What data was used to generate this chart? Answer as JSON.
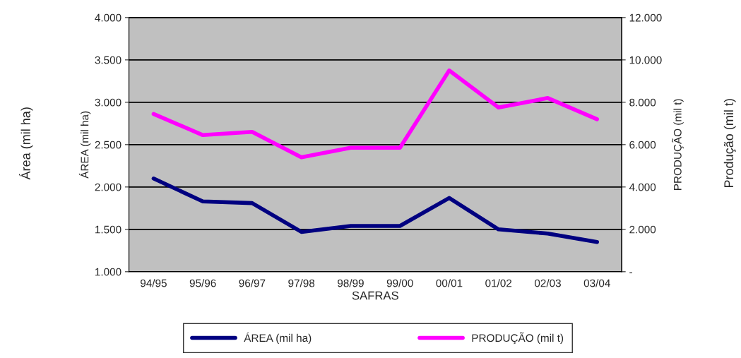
{
  "chart_data": {
    "type": "line",
    "xlabel": "SAFRAS",
    "ylabel": "ÁREA (mil ha)",
    "y2label": "PRODUÇÃO (mil t)",
    "categories": [
      "94/95",
      "95/96",
      "96/97",
      "97/98",
      "98/99",
      "99/00",
      "00/01",
      "01/02",
      "02/03",
      "03/04"
    ],
    "series": [
      {
        "name": "ÁREA (mil ha)",
        "color": "#000080",
        "values": [
          2100,
          1830,
          1810,
          1470,
          1540,
          1540,
          1870,
          1500,
          1450,
          1350
        ]
      },
      {
        "name": "PRODUÇÃO (mil t)",
        "color": "#ff00ff",
        "axis": "y2",
        "values": [
          7450,
          6450,
          6600,
          5400,
          5850,
          5850,
          9500,
          7750,
          8200,
          7200
        ]
      }
    ],
    "ylim": [
      1000,
      4000
    ],
    "yticks": [
      {
        "value": 1000,
        "label": "1.000"
      },
      {
        "value": 1500,
        "label": "1.500"
      },
      {
        "value": 2000,
        "label": "2.000"
      },
      {
        "value": 2500,
        "label": "2.500"
      },
      {
        "value": 3000,
        "label": "3.000"
      },
      {
        "value": 3500,
        "label": "3.500"
      },
      {
        "value": 4000,
        "label": "4.000"
      }
    ],
    "y2lim": [
      0,
      12000
    ],
    "y2ticks": [
      {
        "value": 0,
        "label": "-"
      },
      {
        "value": 2000,
        "label": "2.000"
      },
      {
        "value": 4000,
        "label": "4.000"
      },
      {
        "value": 6000,
        "label": "6.000"
      },
      {
        "value": 8000,
        "label": "8.000"
      },
      {
        "value": 10000,
        "label": "10.000"
      },
      {
        "value": 12000,
        "label": "12.000"
      }
    ],
    "grid": "y",
    "legend": "bottom",
    "marker": "none",
    "line_style": "solid",
    "annotations": [
      "Área (mil ha)",
      "Produção (mil t)"
    ]
  }
}
